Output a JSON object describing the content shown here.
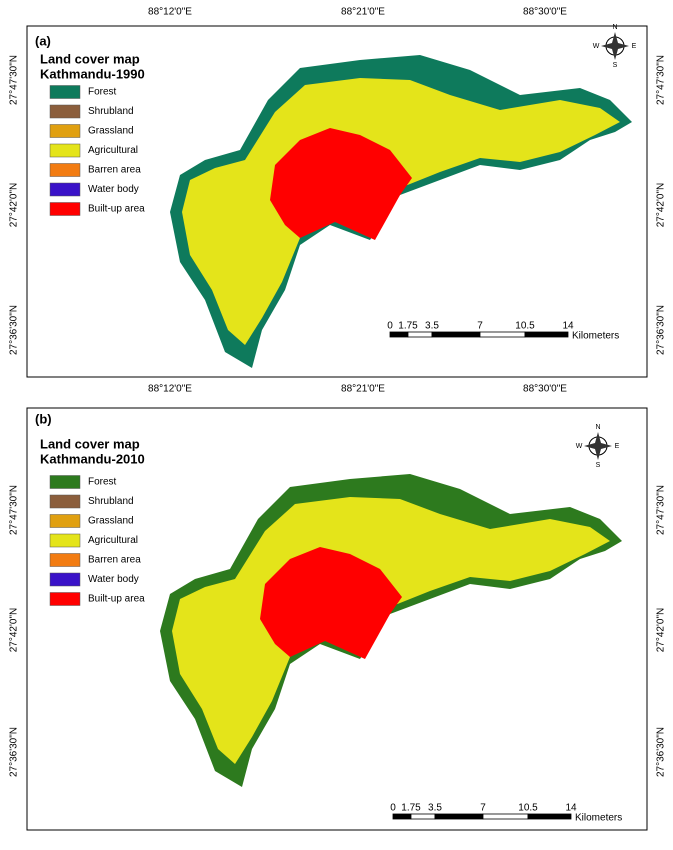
{
  "panels": [
    {
      "label": "(a)",
      "title": [
        "Land cover map",
        "Kathmandu-1990"
      ],
      "legend": [
        {
          "name": "Forest",
          "color": "#0e7a5c"
        },
        {
          "name": "Shrubland",
          "color": "#8b5e3c"
        },
        {
          "name": "Grassland",
          "color": "#e0a010"
        },
        {
          "name": "Agricultural",
          "color": "#e4e41a"
        },
        {
          "name": "Barren area",
          "color": "#f27c12"
        },
        {
          "name": "Water body",
          "color": "#3a12c8"
        },
        {
          "name": "Built-up area",
          "color": "#ff0000"
        }
      ],
      "top_labels": [
        "88°12'0\"E",
        "88°21'0\"E",
        "88°30'0\"E"
      ],
      "bottom_labels": [
        "88°12'0\"E",
        "88°21'0\"E",
        "88°30'0\"E"
      ],
      "left_labels": [
        "27°47'30\"N",
        "27°42'0\"N",
        "27°36'30\"N"
      ],
      "right_labels": [
        "27°47'30\"N",
        "27°42'0\"N",
        "27°36'30\"N"
      ],
      "compass": {
        "n": "N",
        "s": "S",
        "e": "E",
        "w": "W"
      },
      "scale": {
        "ticks": [
          "0",
          "1.75",
          "3.5",
          "7",
          "10.5",
          "14"
        ],
        "unit": "Kilometers"
      }
    },
    {
      "label": "(b)",
      "title": [
        "Land cover map",
        "Kathmandu-2010"
      ],
      "legend": [
        {
          "name": "Forest",
          "color": "#2d7a1e"
        },
        {
          "name": "Shrubland",
          "color": "#8b5e3c"
        },
        {
          "name": "Grassland",
          "color": "#e0a010"
        },
        {
          "name": "Agricultural",
          "color": "#e4e41a"
        },
        {
          "name": "Barren area",
          "color": "#f27c12"
        },
        {
          "name": "Water body",
          "color": "#3a12c8"
        },
        {
          "name": "Built-up area",
          "color": "#ff0000"
        }
      ],
      "left_labels": [
        "27°47'30\"N",
        "27°42'0\"N",
        "27°36'30\"N"
      ],
      "right_labels": [
        "27°47'30\"N",
        "27°42'0\"N",
        "27°36'30\"N"
      ],
      "compass": {
        "n": "N",
        "s": "S",
        "e": "E",
        "w": "W"
      },
      "scale": {
        "ticks": [
          "0",
          "1.75",
          "3.5",
          "7",
          "10.5",
          "14"
        ],
        "unit": "Kilometers"
      }
    }
  ]
}
